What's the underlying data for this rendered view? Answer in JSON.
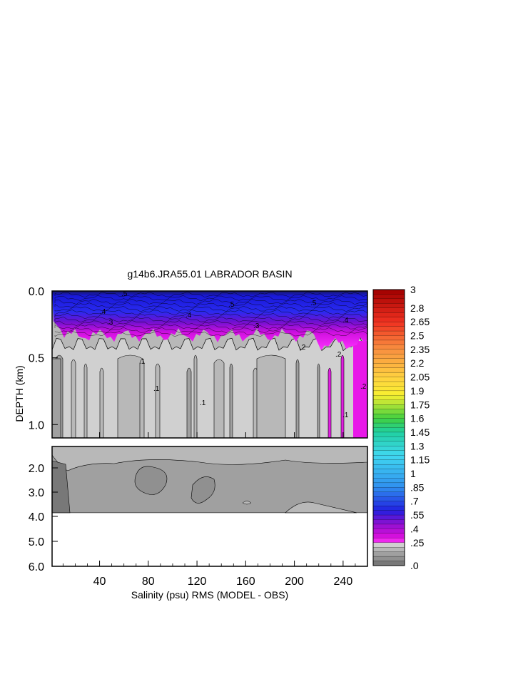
{
  "chart_data": {
    "type": "heatmap",
    "title": "g14b6.JRA55.01 LABRADOR BASIN",
    "xlabel": "Salinity (psu) RMS (MODEL - OBS)",
    "ylabel": "DEPTH (km)",
    "xlim": [
      1,
      260
    ],
    "x_ticks": [
      "40",
      "80",
      "120",
      "160",
      "200",
      "240"
    ],
    "x_tick_values": [
      40,
      80,
      120,
      160,
      200,
      240
    ],
    "upper_panel": {
      "ylim": [
        0.0,
        1.1
      ],
      "y_ticks": [
        "0.0",
        "0.5",
        "1.0"
      ],
      "y_tick_values": [
        0.0,
        0.5,
        1.0
      ]
    },
    "lower_panel": {
      "ylim": [
        1.1,
        6.0
      ],
      "y_ticks": [
        "2.0",
        "3.0",
        "4.0",
        "5.0",
        "6.0"
      ],
      "y_tick_values": [
        2.0,
        3.0,
        4.0,
        5.0,
        6.0
      ],
      "data_bottom_km": 3.85
    },
    "colorbar": {
      "labels": [
        "3",
        "2.8",
        "2.65",
        "2.5",
        "2.35",
        "2.2",
        "2.05",
        "1.9",
        "1.75",
        "1.6",
        "1.45",
        "1.3",
        "1.15",
        "1",
        ".85",
        ".7",
        ".55",
        ".4",
        ".25",
        ".0"
      ],
      "label_values": [
        3.0,
        2.8,
        2.65,
        2.5,
        2.35,
        2.2,
        2.05,
        1.9,
        1.75,
        1.6,
        1.45,
        1.3,
        1.15,
        1.0,
        0.85,
        0.7,
        0.55,
        0.4,
        0.25,
        0.0
      ],
      "stops": [
        {
          "value": 3.0,
          "color": "#a00000"
        },
        {
          "value": 2.65,
          "color": "#f03020"
        },
        {
          "value": 2.35,
          "color": "#f89040"
        },
        {
          "value": 2.05,
          "color": "#ffd040"
        },
        {
          "value": 1.85,
          "color": "#f8f030"
        },
        {
          "value": 1.6,
          "color": "#40d040"
        },
        {
          "value": 1.45,
          "color": "#20d0a0"
        },
        {
          "value": 1.2,
          "color": "#40d8f0"
        },
        {
          "value": 0.85,
          "color": "#3090f0"
        },
        {
          "value": 0.6,
          "color": "#2020e0"
        },
        {
          "value": 0.45,
          "color": "#9010d0"
        },
        {
          "value": 0.3,
          "color": "#e010e0"
        },
        {
          "value": 0.25,
          "color": "#ff40ff"
        }
      ],
      "gray_levels": [
        "#d0d0d0",
        "#b8b8b8",
        "#a0a0a0",
        "#909090",
        "#787878"
      ]
    },
    "contour_labels": [
      ".5",
      ".5",
      ".5",
      ".4",
      ".4",
      ".4",
      ".3",
      ".3",
      ".2",
      ".2",
      ".2",
      ".1",
      ".1",
      ".1",
      ".1"
    ]
  }
}
